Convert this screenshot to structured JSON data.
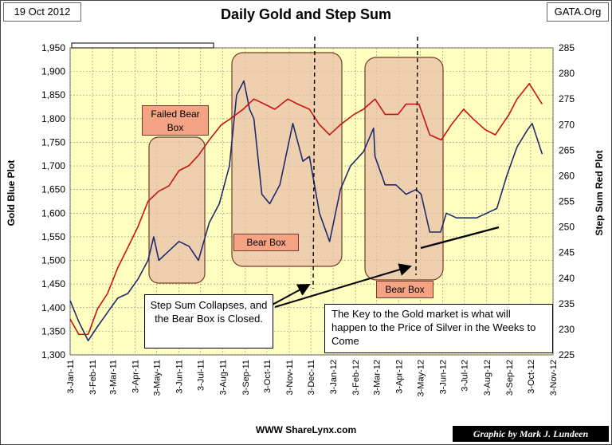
{
  "header": {
    "date": "19 Oct 2012",
    "brand": "GATA.Org"
  },
  "footer": {
    "website": "WWW ShareLynx.com",
    "credit": "Graphic by Mark J. Lundeen"
  },
  "annotations": {
    "step_sum_collapses": "Step Sum Collapses, and the Bear Box is Closed.",
    "key_to_gold": "The Key to the Gold market is what will happen to the Price of Silver in the Weeks to Come",
    "failed_bear_box": "Failed Bear Box",
    "bear_box_1": "Bear Box",
    "bear_box_2": "Bear Box"
  },
  "colors": {
    "plot_bg": "#ffffc0",
    "gold_series": "#1f2a6e",
    "step_sum_series": "#cc1111",
    "box_fill": "#e8c0a8",
    "box_border": "#7a3a2a"
  },
  "chart_data": {
    "type": "line",
    "title": "Daily Gold and Step Sum",
    "ylabel": "Gold Blue Plot",
    "y2label": "Step Sum Red Plot",
    "ylim": [
      1300,
      1950
    ],
    "y2lim": [
      225,
      285
    ],
    "yticks": [
      "1,300",
      "1,350",
      "1,400",
      "1,450",
      "1,500",
      "1,550",
      "1,600",
      "1,650",
      "1,700",
      "1,750",
      "1,800",
      "1,850",
      "1,900",
      "1,950"
    ],
    "y2ticks": [
      "225",
      "230",
      "235",
      "240",
      "245",
      "250",
      "255",
      "260",
      "265",
      "270",
      "275",
      "280",
      "285"
    ],
    "xticks": [
      "3-Jan-11",
      "3-Feb-11",
      "3-Mar-11",
      "3-Apr-11",
      "3-May-11",
      "3-Jun-11",
      "3-Jul-11",
      "3-Aug-11",
      "3-Sep-11",
      "3-Oct-11",
      "3-Nov-11",
      "3-Dec-11",
      "3-Jan-12",
      "3-Feb-12",
      "3-Mar-12",
      "3-Apr-12",
      "3-May-12",
      "3-Jun-12",
      "3-Jul-12",
      "3-Aug-12",
      "3-Sep-12",
      "3-Oct-12",
      "3-Nov-12"
    ],
    "grid": true,
    "series": [
      {
        "name": "Gold Blue Plot",
        "axis": "left",
        "x": [
          "2011-01-03",
          "2011-01-15",
          "2011-01-28",
          "2011-02-10",
          "2011-02-24",
          "2011-03-10",
          "2011-03-24",
          "2011-04-07",
          "2011-04-21",
          "2011-04-29",
          "2011-05-06",
          "2011-05-20",
          "2011-06-03",
          "2011-06-17",
          "2011-06-30",
          "2011-07-15",
          "2011-07-29",
          "2011-08-12",
          "2011-08-22",
          "2011-09-01",
          "2011-09-09",
          "2011-09-15",
          "2011-09-26",
          "2011-10-07",
          "2011-10-21",
          "2011-11-08",
          "2011-11-22",
          "2011-12-01",
          "2011-12-15",
          "2011-12-29",
          "2012-01-13",
          "2012-01-27",
          "2012-02-14",
          "2012-02-28",
          "2012-03-01",
          "2012-03-15",
          "2012-03-30",
          "2012-04-13",
          "2012-04-27",
          "2012-05-04",
          "2012-05-16",
          "2012-05-31",
          "2012-06-08",
          "2012-06-22",
          "2012-07-06",
          "2012-07-20",
          "2012-08-03",
          "2012-08-17",
          "2012-08-31",
          "2012-09-14",
          "2012-09-28",
          "2012-10-05",
          "2012-10-19"
        ],
        "values": [
          1415,
          1370,
          1330,
          1360,
          1390,
          1420,
          1430,
          1460,
          1500,
          1550,
          1500,
          1520,
          1540,
          1530,
          1500,
          1580,
          1620,
          1700,
          1850,
          1880,
          1820,
          1800,
          1640,
          1620,
          1660,
          1790,
          1710,
          1720,
          1600,
          1540,
          1650,
          1700,
          1730,
          1780,
          1720,
          1660,
          1660,
          1640,
          1650,
          1640,
          1560,
          1560,
          1600,
          1590,
          1590,
          1590,
          1600,
          1610,
          1680,
          1740,
          1775,
          1790,
          1725
        ]
      },
      {
        "name": "Step Sum Red Plot",
        "axis": "right",
        "x": [
          "2011-01-03",
          "2011-01-15",
          "2011-01-28",
          "2011-02-10",
          "2011-02-24",
          "2011-03-10",
          "2011-03-24",
          "2011-04-07",
          "2011-04-21",
          "2011-05-06",
          "2011-05-20",
          "2011-06-03",
          "2011-06-17",
          "2011-06-30",
          "2011-07-15",
          "2011-08-01",
          "2011-08-12",
          "2011-08-31",
          "2011-09-15",
          "2011-09-30",
          "2011-10-14",
          "2011-11-01",
          "2011-11-15",
          "2011-12-01",
          "2011-12-15",
          "2011-12-29",
          "2012-01-13",
          "2012-02-01",
          "2012-02-14",
          "2012-03-01",
          "2012-03-15",
          "2012-04-02",
          "2012-04-13",
          "2012-05-01",
          "2012-05-16",
          "2012-06-01",
          "2012-06-15",
          "2012-07-02",
          "2012-07-16",
          "2012-08-01",
          "2012-08-15",
          "2012-09-03",
          "2012-09-14",
          "2012-10-01",
          "2012-10-19"
        ],
        "values": [
          232,
          229,
          229,
          234,
          237,
          242,
          246,
          250,
          255,
          257,
          258,
          261,
          262,
          264,
          267,
          270,
          271,
          273,
          275,
          274,
          273,
          275,
          274,
          273,
          270,
          268,
          270,
          272,
          273,
          275,
          272,
          272,
          274,
          274,
          268,
          267,
          270,
          273,
          271,
          269,
          268,
          272,
          275,
          278,
          274
        ]
      }
    ]
  }
}
